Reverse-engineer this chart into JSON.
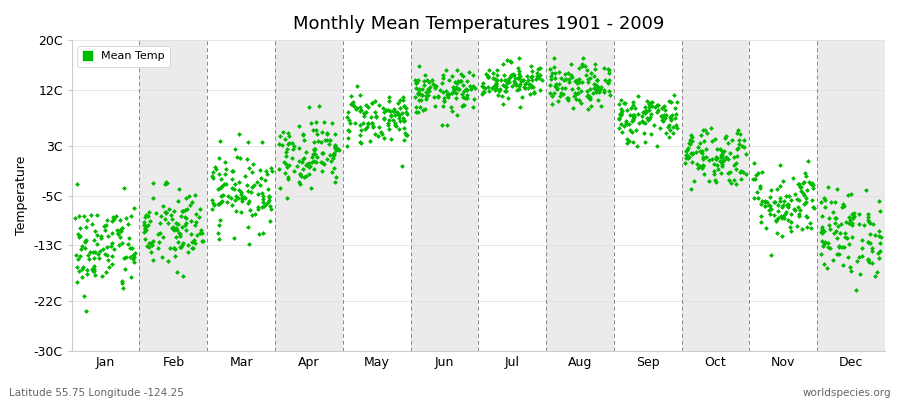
{
  "title": "Monthly Mean Temperatures 1901 - 2009",
  "ylabel": "Temperature",
  "yticks": [
    -30,
    -22,
    -13,
    -5,
    3,
    12,
    20
  ],
  "ytick_labels": [
    "-30C",
    "-22C",
    "-13C",
    "-5C",
    "3C",
    "12C",
    "20C"
  ],
  "ylim": [
    -30,
    20
  ],
  "months": [
    "Jan",
    "Feb",
    "Mar",
    "Apr",
    "May",
    "Jun",
    "Jul",
    "Aug",
    "Sep",
    "Oct",
    "Nov",
    "Dec"
  ],
  "dot_color": "#00bb00",
  "dot_size": 6,
  "dot_marker": "D",
  "legend_label": "Mean Temp",
  "subtitle_left": "Latitude 55.75 Longitude -124.25",
  "subtitle_right": "worldspecies.org",
  "mean_temps": [
    -13.5,
    -10.5,
    -4.0,
    2.0,
    7.5,
    11.5,
    13.5,
    12.5,
    7.5,
    1.5,
    -6.0,
    -11.0
  ],
  "std_temps": [
    3.8,
    3.5,
    3.2,
    2.8,
    2.2,
    1.8,
    1.5,
    1.8,
    2.0,
    2.5,
    3.0,
    3.5
  ],
  "n_years": 109,
  "plot_bg_even": "#ffffff",
  "plot_bg_odd": "#ebebeb",
  "grid_color": "#888888",
  "hgrid_color": "#dddddd"
}
